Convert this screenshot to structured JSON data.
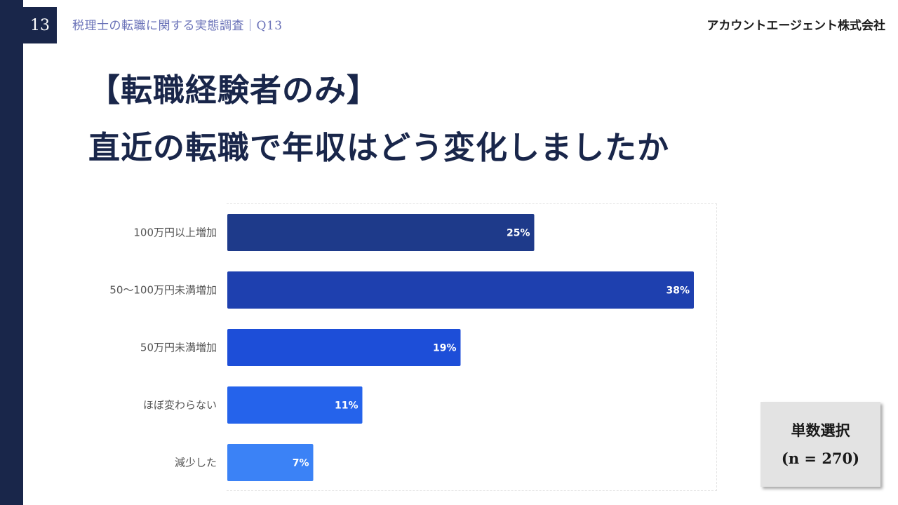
{
  "header": {
    "page_number": "13",
    "title": "税理士の転職に関する実態調査｜Q13",
    "company": "アカウントエージェント株式会社"
  },
  "title": {
    "line1": "【転職経験者のみ】",
    "line2": "直近の転職で年収はどう変化しましたか"
  },
  "note": {
    "line1": "単数選択",
    "line2": "(n = 270)"
  },
  "colors": {
    "sidebar": "#19264a",
    "bars": [
      "#1e3a8a",
      "#1e40af",
      "#1d4ed8",
      "#2563eb",
      "#3b82f6"
    ],
    "label_text": "#555555"
  },
  "chart_data": {
    "type": "bar",
    "orientation": "horizontal",
    "categories": [
      "100万円以上増加",
      "50〜100万円未満増加",
      "50万円未満増加",
      "ほぼ変わらない",
      "減少した"
    ],
    "values": [
      25,
      38,
      19,
      11,
      7
    ],
    "value_labels": [
      "25%",
      "38%",
      "19%",
      "11%",
      "7%"
    ],
    "unit": "%",
    "xlim": [
      0,
      40
    ],
    "grid": false,
    "legend": "none"
  }
}
